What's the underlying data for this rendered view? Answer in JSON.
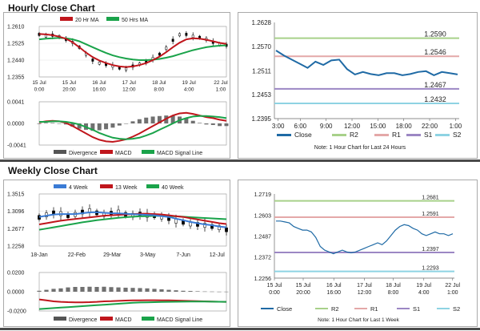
{
  "sections": {
    "hourly_title": "Hourly Close Chart",
    "weekly_title": "Weekly Close Chart"
  },
  "chart_data": [
    {
      "id": "hourly-candles",
      "type": "line",
      "x_ticks": [
        "15 Jul\n0:00",
        "15 Jul\n20:00",
        "16 Jul\n16:00",
        "17 Jul\n12:00",
        "18 Jul\n8:00",
        "19 Jul\n4:00",
        "22 Jul\n1:00"
      ],
      "y_ticks": [
        "1.2610",
        "1.2525",
        "1.2440",
        "1.2355"
      ],
      "ylim": [
        1.2355,
        1.261
      ],
      "legend": [
        "20 Hr MA",
        "50 Hrs MA"
      ],
      "colors": {
        "ma20": "#c0161c",
        "ma50": "#1aa34a",
        "price": "#000000"
      },
      "series": [
        {
          "name": "Price",
          "values": [
            1.257,
            1.2562,
            1.2566,
            1.2558,
            1.2545,
            1.253,
            1.2505,
            1.247,
            1.244,
            1.2425,
            1.2418,
            1.241,
            1.24,
            1.2395,
            1.241,
            1.242,
            1.243,
            1.2448,
            1.247,
            1.25,
            1.254,
            1.2568,
            1.257,
            1.256,
            1.2555,
            1.2545,
            1.253,
            1.252,
            1.2515
          ]
        },
        {
          "name": "20 Hr MA",
          "values": [
            1.2572,
            1.257,
            1.2566,
            1.2558,
            1.2548,
            1.253,
            1.2505,
            1.2478,
            1.2455,
            1.2438,
            1.2425,
            1.2415,
            1.2408,
            1.2405,
            1.2408,
            1.2415,
            1.2425,
            1.244,
            1.2458,
            1.248,
            1.2505,
            1.2528,
            1.2545,
            1.255,
            1.2548,
            1.2543,
            1.2535,
            1.2527,
            1.2522
          ]
        },
        {
          "name": "50 Hrs MA",
          "values": [
            1.2545,
            1.2548,
            1.255,
            1.2552,
            1.255,
            1.2545,
            1.2535,
            1.252,
            1.2505,
            1.249,
            1.2476,
            1.2464,
            1.2455,
            1.2448,
            1.2443,
            1.244,
            1.244,
            1.2442,
            1.2446,
            1.2452,
            1.246,
            1.247,
            1.248,
            1.249,
            1.2498,
            1.2505,
            1.251,
            1.2513,
            1.2515
          ]
        }
      ]
    },
    {
      "id": "hourly-macd",
      "type": "line",
      "x_ticks": [],
      "y_ticks": [
        "0.0041",
        "0.0000",
        "-0.0041"
      ],
      "ylim": [
        -0.0041,
        0.0041
      ],
      "legend": [
        "Divergence",
        "MACD",
        "MACD Signal Line"
      ],
      "colors": {
        "div": "#555555",
        "macd": "#c0161c",
        "signal": "#1aa34a"
      },
      "series": [
        {
          "name": "MACD",
          "values": [
            0.0002,
            0.0004,
            0.0005,
            0.0004,
            0.0001,
            -0.0005,
            -0.0012,
            -0.0019,
            -0.0026,
            -0.0031,
            -0.0034,
            -0.0035,
            -0.0033,
            -0.003,
            -0.0025,
            -0.0019,
            -0.0012,
            -0.0005,
            0.0002,
            0.0009,
            0.0015,
            0.0019,
            0.002,
            0.0018,
            0.0015,
            0.0012,
            0.001,
            0.0007,
            0.0005
          ]
        },
        {
          "name": "MACD Signal Line",
          "values": [
            0.0003,
            0.0003,
            0.0004,
            0.0004,
            0.0003,
            0.0001,
            -0.0002,
            -0.0007,
            -0.0012,
            -0.0018,
            -0.0023,
            -0.0027,
            -0.0029,
            -0.003,
            -0.0029,
            -0.0027,
            -0.0023,
            -0.0018,
            -0.0012,
            -0.0006,
            0.0,
            0.0006,
            0.001,
            0.0013,
            0.0014,
            0.0014,
            0.0013,
            0.0012,
            0.001
          ]
        },
        {
          "name": "Divergence",
          "values": [
            -0.0001,
            0.0001,
            0.0001,
            0.0,
            -0.0002,
            -0.0006,
            -0.001,
            -0.0012,
            -0.0014,
            -0.0013,
            -0.0011,
            -0.0008,
            -0.0004,
            0.0,
            0.0004,
            0.0008,
            0.0011,
            0.0013,
            0.0014,
            0.0015,
            0.0015,
            0.0013,
            0.001,
            0.0005,
            0.0001,
            -0.0002,
            -0.0003,
            -0.0005,
            -0.0005
          ]
        }
      ]
    },
    {
      "id": "hourly-24h",
      "type": "line",
      "x_ticks": [
        "3:00",
        "6:00",
        "9:00",
        "12:00",
        "15:00",
        "18:00",
        "22:00",
        "1:00"
      ],
      "y_ticks": [
        "1.2628",
        "1.2570",
        "1.2511",
        "1.2453",
        "1.2395"
      ],
      "ylim": [
        1.2395,
        1.2628
      ],
      "levels": [
        {
          "name": "R2",
          "value": 1.259,
          "label": "1.2590",
          "color": "#a8d18a"
        },
        {
          "name": "R1",
          "value": 1.2546,
          "label": "1.2546",
          "color": "#e4a8a8"
        },
        {
          "name": "S1",
          "value": 1.2467,
          "label": "1.2467",
          "color": "#9c87c4"
        },
        {
          "name": "S2",
          "value": 1.2432,
          "label": "1.2432",
          "color": "#8ed3e3"
        }
      ],
      "legend": [
        "Close",
        "R2",
        "R1",
        "S1",
        "S2"
      ],
      "close_color": "#1f6aa5",
      "x": [
        0,
        1,
        2,
        3,
        4,
        5,
        6,
        7,
        8,
        9,
        10,
        11,
        12,
        13,
        14,
        15,
        16,
        17,
        18,
        19,
        20,
        21,
        22,
        23
      ],
      "values": [
        1.256,
        1.2548,
        1.2538,
        1.2528,
        1.2518,
        1.2533,
        1.2525,
        1.2536,
        1.2538,
        1.2515,
        1.2502,
        1.2508,
        1.2503,
        1.25,
        1.2505,
        1.2505,
        1.25,
        1.2503,
        1.2508,
        1.251,
        1.25,
        1.2508,
        1.2505,
        1.2502
      ],
      "note": "Note: 1 Hour Chart for Last 24 Hours"
    },
    {
      "id": "weekly-candles",
      "type": "line",
      "x_ticks": [
        "18-Jan",
        "22-Feb",
        "29-Mar",
        "3-May",
        "7-Jun",
        "12-Jul"
      ],
      "y_ticks": [
        "1.3515",
        "1.3096",
        "1.2677",
        "1.2258"
      ],
      "ylim": [
        1.2258,
        1.3515
      ],
      "legend": [
        "4 Week",
        "13 Week",
        "40 Week"
      ],
      "colors": {
        "w4": "#3a7bd5",
        "w13": "#c0161c",
        "w40": "#1aa34a",
        "price": "#000000"
      },
      "series": [
        {
          "name": "Price",
          "values": [
            1.295,
            1.301,
            1.306,
            1.304,
            1.299,
            1.302,
            1.308,
            1.311,
            1.306,
            1.302,
            1.305,
            1.308,
            1.302,
            1.3,
            1.303,
            1.3,
            1.299,
            1.296,
            1.292,
            1.286,
            1.283,
            1.279,
            1.278,
            1.276,
            1.273,
            1.27,
            1.265
          ]
        },
        {
          "name": "4 Week",
          "values": [
            1.296,
            1.299,
            1.302,
            1.303,
            1.303,
            1.303,
            1.305,
            1.307,
            1.3075,
            1.306,
            1.305,
            1.3045,
            1.304,
            1.3025,
            1.302,
            1.301,
            1.3,
            1.298,
            1.296,
            1.292,
            1.288,
            1.284,
            1.281,
            1.278,
            1.276,
            1.273,
            1.271
          ]
        },
        {
          "name": "13 Week",
          "values": [
            1.278,
            1.281,
            1.284,
            1.287,
            1.289,
            1.291,
            1.293,
            1.295,
            1.297,
            1.299,
            1.3,
            1.301,
            1.302,
            1.303,
            1.304,
            1.304,
            1.303,
            1.302,
            1.3,
            1.298,
            1.296,
            1.293,
            1.29,
            1.287,
            1.284,
            1.281,
            1.279
          ]
        },
        {
          "name": "40 Week",
          "values": [
            1.265,
            1.268,
            1.271,
            1.274,
            1.277,
            1.28,
            1.283,
            1.2855,
            1.288,
            1.29,
            1.292,
            1.294,
            1.2955,
            1.2965,
            1.2975,
            1.298,
            1.2985,
            1.2985,
            1.298,
            1.2975,
            1.2965,
            1.2955,
            1.2945,
            1.2935,
            1.2925,
            1.2915,
            1.2905
          ]
        }
      ]
    },
    {
      "id": "weekly-macd",
      "type": "line",
      "x_ticks": [],
      "y_ticks": [
        "0.0200",
        "0.0000",
        "-0.0200"
      ],
      "ylim": [
        -0.02,
        0.02
      ],
      "legend": [
        "Divergence",
        "MACD",
        "MACD Signal Line"
      ],
      "colors": {
        "div": "#555555",
        "macd": "#c0161c",
        "signal": "#1aa34a"
      },
      "series": [
        {
          "name": "MACD",
          "values": [
            -0.008,
            -0.009,
            -0.01,
            -0.0105,
            -0.0108,
            -0.011,
            -0.011,
            -0.0108,
            -0.0105,
            -0.01,
            -0.0098,
            -0.0095,
            -0.0092,
            -0.009,
            -0.0089,
            -0.0088,
            -0.0088,
            -0.0089,
            -0.009,
            -0.0092,
            -0.0094,
            -0.0096,
            -0.0098,
            -0.01,
            -0.0102,
            -0.0104,
            -0.0105
          ]
        },
        {
          "name": "MACD Signal Line",
          "values": [
            -0.018,
            -0.0175,
            -0.017,
            -0.0165,
            -0.016,
            -0.0155,
            -0.015,
            -0.0145,
            -0.014,
            -0.0135,
            -0.013,
            -0.0125,
            -0.012,
            -0.0115,
            -0.0112,
            -0.011,
            -0.0108,
            -0.0106,
            -0.0105,
            -0.0104,
            -0.0103,
            -0.0102,
            -0.0102,
            -0.0102,
            -0.0103,
            -0.0104,
            -0.0105
          ]
        },
        {
          "name": "Divergence",
          "values": [
            0.001,
            0.002,
            0.003,
            0.0035,
            0.0045,
            0.005,
            0.005,
            0.0052,
            0.005,
            0.0052,
            0.0048,
            0.0045,
            0.0042,
            0.004,
            0.0038,
            0.0035,
            0.003,
            0.0025,
            0.002,
            0.0015,
            0.001,
            0.0008,
            0.0005,
            0.0003,
            0.0002,
            0.0001,
            0.0001
          ]
        }
      ]
    },
    {
      "id": "weekly-line",
      "type": "line",
      "x_ticks": [
        "15 Jul\n0:00",
        "15 Jul\n20:00",
        "16 Jul\n16:00",
        "17 Jul\n12:00",
        "18 Jul\n8:00",
        "19 Jul\n4:00",
        "22 Jul\n1:00"
      ],
      "y_ticks": [
        "1.2719",
        "1.2603",
        "1.2487",
        "1.2372",
        "1.2256"
      ],
      "ylim": [
        1.2256,
        1.2719
      ],
      "levels": [
        {
          "name": "R2",
          "value": 1.2681,
          "label": "1.2681",
          "color": "#a8d18a"
        },
        {
          "name": "R1",
          "value": 1.2591,
          "label": "1.2591",
          "color": "#e4a8a8"
        },
        {
          "name": "S1",
          "value": 1.2397,
          "label": "1.2397",
          "color": "#9c87c4"
        },
        {
          "name": "S2",
          "value": 1.2293,
          "label": "1.2293",
          "color": "#8ed3e3"
        }
      ],
      "legend": [
        "Close",
        "R2",
        "R1",
        "S1",
        "S2"
      ],
      "close_color": "#1f6aa5",
      "x": [
        0,
        1,
        2,
        3,
        4,
        5,
        6,
        7,
        8,
        9,
        10,
        11,
        12,
        13,
        14,
        15,
        16,
        17,
        18,
        19,
        20,
        21,
        22,
        23,
        24,
        25,
        26,
        27,
        28,
        29,
        30,
        31,
        32,
        33,
        34,
        35,
        36,
        37,
        38,
        39,
        40
      ],
      "values": [
        1.257,
        1.257,
        1.2565,
        1.256,
        1.254,
        1.253,
        1.252,
        1.252,
        1.251,
        1.248,
        1.243,
        1.241,
        1.24,
        1.239,
        1.24,
        1.241,
        1.24,
        1.2395,
        1.24,
        1.241,
        1.242,
        1.243,
        1.244,
        1.245,
        1.244,
        1.246,
        1.249,
        1.252,
        1.254,
        1.255,
        1.2545,
        1.253,
        1.252,
        1.25,
        1.249,
        1.25,
        1.251,
        1.25,
        1.25,
        1.249,
        1.25
      ],
      "note": "Note: 1 Hour Chart for Last 1 Week"
    }
  ]
}
